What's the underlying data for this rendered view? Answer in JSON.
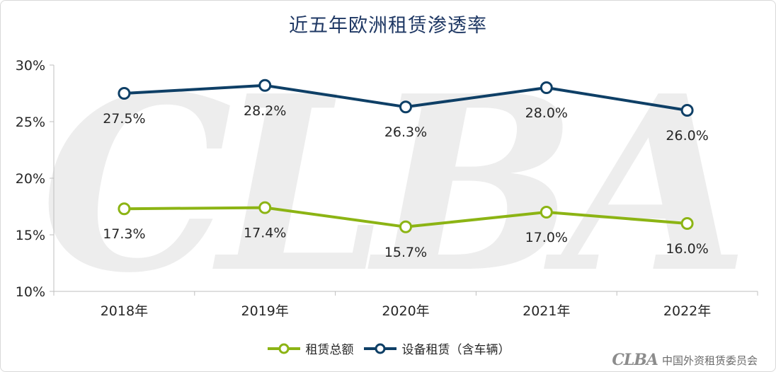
{
  "title": "近五年欧洲租赁渗透率",
  "watermark": "CLBA",
  "footer": {
    "logo": "CLBA",
    "org": "中国外资租赁委员会"
  },
  "legend": [
    "租赁总额",
    "设备租赁（含车辆）"
  ],
  "colors": {
    "total": "#8cb414",
    "equipment": "#0e3f66",
    "axis": "#bfbfbf",
    "title": "#1f3864"
  },
  "chart_data": {
    "type": "line",
    "title": "近五年欧洲租赁渗透率",
    "categories": [
      "2018年",
      "2019年",
      "2020年",
      "2021年",
      "2022年"
    ],
    "yticks": [
      "10%",
      "15%",
      "20%",
      "25%",
      "30%"
    ],
    "ylim": [
      10,
      30
    ],
    "series": [
      {
        "name": "租赁总额",
        "values": [
          17.3,
          17.4,
          15.7,
          17.0,
          16.0
        ],
        "labels": [
          "17.3%",
          "17.4%",
          "15.7%",
          "17.0%",
          "16.0%"
        ]
      },
      {
        "name": "设备租赁（含车辆）",
        "values": [
          27.5,
          28.2,
          26.3,
          28.0,
          26.0
        ],
        "labels": [
          "27.5%",
          "28.2%",
          "26.3%",
          "28.0%",
          "26.0%"
        ]
      }
    ],
    "legend_position": "bottom",
    "grid": false
  }
}
